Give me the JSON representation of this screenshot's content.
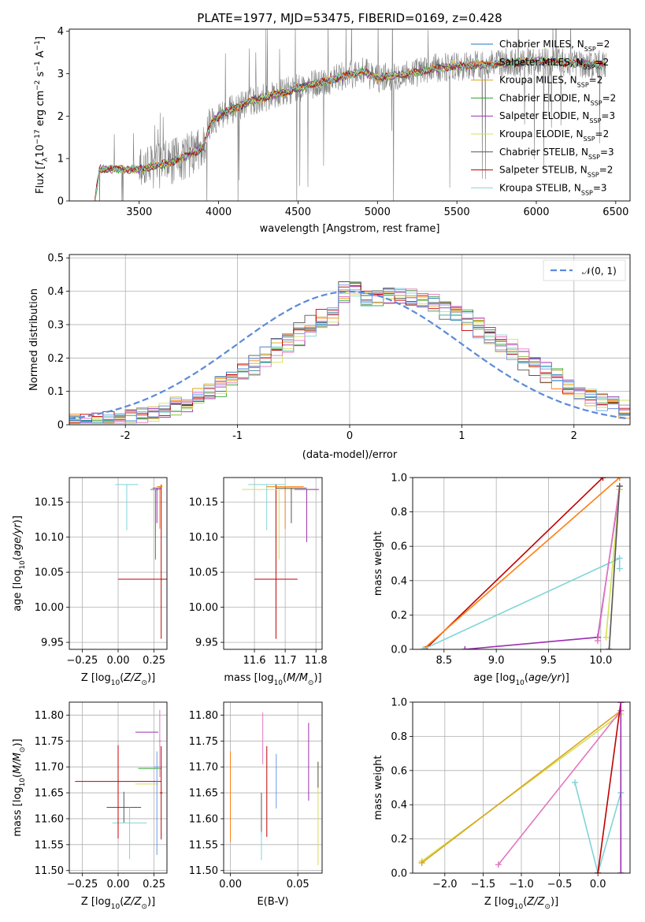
{
  "chart_data": [
    {
      "type": "line",
      "panel": "spectrum",
      "title": "PLATE=1977, MJD=53475, FIBERID=0169, z=0.428",
      "xlabel": "wavelength [Angstrom, rest frame]",
      "ylabel": "Flux [f_λ 10^-17 erg cm^-2 s^-1 Å^-1]",
      "xlim": [
        3060,
        6590
      ],
      "ylim": [
        0,
        4.05
      ],
      "xticks": [
        3500,
        4000,
        4500,
        5000,
        5500,
        6000,
        6500
      ],
      "yticks": [
        0,
        1,
        2,
        3,
        4
      ],
      "grid": false,
      "legend_position": "right",
      "data_range": [
        3220,
        6440
      ],
      "continuum_knots": {
        "x": [
          3220,
          3250,
          3500,
          3700,
          3850,
          3900,
          3960,
          4020,
          4200,
          4400,
          4600,
          4800,
          4900,
          5000,
          5200,
          5400,
          5600,
          5800,
          6000,
          6200,
          6440
        ],
        "y": [
          0.0,
          0.75,
          0.75,
          0.9,
          1.15,
          1.25,
          1.9,
          2.05,
          2.35,
          2.55,
          2.75,
          2.95,
          3.05,
          2.9,
          3.0,
          3.15,
          3.2,
          3.25,
          3.3,
          3.25,
          3.2
        ]
      },
      "legend": [
        {
          "label": "Chabrier MILES, N",
          "sub": "SSP",
          "tail": "=2",
          "color": "#1f77b4"
        },
        {
          "label": "Salpeter MILES, N",
          "sub": "SSP",
          "tail": "=2",
          "color": "#ff7f0e"
        },
        {
          "label": "Kroupa MILES, N",
          "sub": "SSP",
          "tail": "=2",
          "color": "#d9a520"
        },
        {
          "label": "Chabrier ELODIE, N",
          "sub": "SSP",
          "tail": "=2",
          "color": "#2ca02c"
        },
        {
          "label": "Salpeter ELODIE, N",
          "sub": "SSP",
          "tail": "=3",
          "color": "#9b30b0"
        },
        {
          "label": "Kroupa ELODIE, N",
          "sub": "SSP",
          "tail": "=2",
          "color": "#d4e157"
        },
        {
          "label": "Chabrier STELIB, N",
          "sub": "SSP",
          "tail": "=3",
          "color": "#555555"
        },
        {
          "label": "Salpeter STELIB, N",
          "sub": "SSP",
          "tail": "=2",
          "color": "#c00000"
        },
        {
          "label": "Kroupa STELIB, N",
          "sub": "SSP",
          "tail": "=3",
          "color": "#80d4d8"
        }
      ],
      "data_color": "#808080"
    },
    {
      "type": "line",
      "panel": "residual-histogram",
      "xlabel": "(data-model)/error",
      "ylabel": "Normed distribution",
      "xlim": [
        -2.5,
        2.5
      ],
      "ylim": [
        0,
        0.51
      ],
      "xticks": [
        -2,
        -1,
        0,
        1,
        2
      ],
      "yticks": [
        0.0,
        0.1,
        0.2,
        0.3,
        0.4,
        0.5
      ],
      "grid": true,
      "legend": [
        {
          "label": "𝒩(0, 1)",
          "color": "#5b8bd8"
        }
      ],
      "legend_position": "top-right",
      "gaussian": {
        "mu": 0,
        "sigma": 1,
        "color": "#5b8bd8"
      },
      "histograms": {
        "bin_edges_start": -2.5,
        "bin_width": 0.1,
        "bins": 50,
        "colors": [
          "#1f77b4",
          "#ff7f0e",
          "#d9a520",
          "#2ca02c",
          "#9b30b0",
          "#d4e157",
          "#555555",
          "#c00000",
          "#80d4d8",
          "#e377c2",
          "#6a9be8"
        ]
      }
    },
    {
      "type": "scatter",
      "panel": "age-vs-Z",
      "xlabel": "Z [log10(Z/Z☉)]",
      "ylabel": "age  [log10(age/yr)]",
      "xlim": [
        -0.34,
        0.34
      ],
      "ylim": [
        9.94,
        10.185
      ],
      "xticks": [
        -0.25,
        0.0,
        0.25
      ],
      "xticklabels": [
        "−0.25",
        "0.00",
        "0.25"
      ],
      "yticks": [
        9.95,
        10.0,
        10.05,
        10.1,
        10.15
      ],
      "yticklabels": [
        "9.95",
        "10.00",
        "10.05",
        "10.10",
        "10.15"
      ],
      "grid": true,
      "points": [
        {
          "x": 0.06,
          "y": 10.175,
          "xerr": 0.08,
          "yerr": [
            0.065,
            0.0
          ],
          "color": "#80d4d8"
        },
        {
          "x": 0.3,
          "y": 10.04,
          "xerr": 0.3,
          "yerr": [
            0.085,
            0.135
          ],
          "color": "#c00000"
        },
        {
          "x": 0.26,
          "y": 10.168,
          "xerr": 0.035,
          "yerr": [
            0.1,
            0.0
          ],
          "color": "#2ca02c"
        },
        {
          "x": 0.29,
          "y": 10.172,
          "xerr": 0.02,
          "yerr": [
            0.06,
            0.0
          ],
          "color": "#ff7f0e"
        },
        {
          "x": 0.27,
          "y": 10.17,
          "xerr": 0.03,
          "yerr": [
            0.05,
            0.0
          ],
          "color": "#9b30b0"
        }
      ]
    },
    {
      "type": "scatter",
      "panel": "age-vs-mass",
      "xlabel": "mass [log10(M/M☉)]",
      "ylabel": "",
      "xlim": [
        11.5,
        11.82
      ],
      "ylim": [
        9.94,
        10.185
      ],
      "xticks": [
        11.6,
        11.7,
        11.8
      ],
      "xticklabels": [
        "11.6",
        "11.7",
        "11.8"
      ],
      "yticks": [
        9.95,
        10.0,
        10.05,
        10.1,
        10.15
      ],
      "yticklabels": [
        "9.95",
        "10.00",
        "10.05",
        "10.10",
        "10.15"
      ],
      "grid": true,
      "points": [
        {
          "x": 11.64,
          "y": 10.175,
          "xerr": 0.06,
          "yerr": [
            0.065,
            0.0
          ],
          "color": "#80d4d8"
        },
        {
          "x": 11.67,
          "y": 10.04,
          "xerr": 0.07,
          "yerr": [
            0.085,
            0.135
          ],
          "color": "#c00000"
        },
        {
          "x": 11.68,
          "y": 10.168,
          "xerr": 0.12,
          "yerr": [
            0.1,
            0.0
          ],
          "color": "#d4e157"
        },
        {
          "x": 11.7,
          "y": 10.172,
          "xerr": 0.06,
          "yerr": [
            0.06,
            0.0
          ],
          "color": "#ff7f0e"
        },
        {
          "x": 11.77,
          "y": 10.168,
          "xerr": 0.04,
          "yerr": [
            0.075,
            0.0
          ],
          "color": "#9b30b0"
        },
        {
          "x": 11.72,
          "y": 10.17,
          "xerr": 0.05,
          "yerr": [
            0.05,
            0.0
          ],
          "color": "#555555"
        }
      ]
    },
    {
      "type": "line",
      "panel": "mass-weight-vs-age",
      "xlabel": "age  [log10(age/yr)]",
      "ylabel": "mass weight",
      "xlim": [
        8.2,
        10.28
      ],
      "ylim": [
        0,
        1.0
      ],
      "xticks": [
        8.5,
        9.0,
        9.5,
        10.0
      ],
      "xticklabels": [
        "8.5",
        "9.0",
        "9.5",
        "10.0"
      ],
      "yticks": [
        0.0,
        0.2,
        0.4,
        0.6,
        0.8,
        1.0
      ],
      "yticklabels": [
        "0.0",
        "0.2",
        "0.4",
        "0.6",
        "0.8",
        "1.0"
      ],
      "grid": true,
      "series": [
        {
          "color": "#c00000",
          "x": [
            8.32,
            10.02
          ],
          "y": [
            0.0,
            1.0
          ]
        },
        {
          "color": "#ff7f0e",
          "x": [
            8.3,
            10.18
          ],
          "y": [
            0.0,
            1.0
          ]
        },
        {
          "color": "#80d4d8",
          "x": [
            8.3,
            10.18,
            10.18
          ],
          "y": [
            0.0,
            0.53,
            0.47
          ]
        },
        {
          "color": "#9b30b0",
          "x": [
            8.7,
            9.97,
            10.18
          ],
          "y": [
            0.0,
            0.07,
            0.93
          ]
        },
        {
          "color": "#e377c2",
          "x": [
            9.97,
            10.18
          ],
          "y": [
            0.05,
            0.95
          ]
        },
        {
          "color": "#d4e157",
          "x": [
            10.05,
            10.18
          ],
          "y": [
            0.07,
            0.93
          ]
        },
        {
          "color": "#555555",
          "x": [
            10.08,
            10.18
          ],
          "y": [
            0.0,
            0.95
          ]
        }
      ]
    },
    {
      "type": "scatter",
      "panel": "mass-vs-Z",
      "xlabel": "Z [log10(Z/Z☉)]",
      "ylabel": "mass [log10(M/M☉)]",
      "xlim": [
        -0.34,
        0.34
      ],
      "ylim": [
        11.495,
        11.825
      ],
      "xticks": [
        -0.25,
        0.0,
        0.25
      ],
      "xticklabels": [
        "−0.25",
        "0.00",
        "0.25"
      ],
      "yticks": [
        11.5,
        11.55,
        11.6,
        11.65,
        11.7,
        11.75,
        11.8
      ],
      "yticklabels": [
        "11.50",
        "11.55",
        "11.60",
        "11.65",
        "11.70",
        "11.75",
        "11.80"
      ],
      "grid": true,
      "points": [
        {
          "x": 0.04,
          "y": 11.622,
          "xerr": 0.12,
          "yerr": [
            0.03,
            0.03
          ],
          "color": "#555555"
        },
        {
          "x": 0.08,
          "y": 11.592,
          "xerr": 0.12,
          "yerr": [
            0.07,
            0.03
          ],
          "color": "#80d4d8"
        },
        {
          "x": 0.0,
          "y": 11.672,
          "xerr": 0.3,
          "yerr": [
            0.11,
            0.07
          ],
          "color": "#c00000"
        },
        {
          "x": 0.2,
          "y": 11.767,
          "xerr": 0.08,
          "yerr": [
            0.0,
            0.0
          ],
          "color": "#9b30b0"
        },
        {
          "x": 0.2,
          "y": 11.667,
          "xerr": 0.08,
          "yerr": [
            0.0,
            0.0
          ],
          "color": "#d4e157"
        },
        {
          "x": 0.22,
          "y": 11.697,
          "xerr": 0.08,
          "yerr": [
            0.0,
            0.0
          ],
          "color": "#2ca02c"
        },
        {
          "x": 0.27,
          "y": 11.7,
          "xerr": 0.02,
          "yerr": [
            0.17,
            0.03
          ],
          "color": "#6a9be8"
        },
        {
          "x": 0.29,
          "y": 11.75,
          "xerr": 0.01,
          "yerr": [
            0.07,
            0.06
          ],
          "color": "#e377c2"
        },
        {
          "x": 0.3,
          "y": 11.65,
          "xerr": 0.01,
          "yerr": [
            0.09,
            0.09
          ],
          "color": "#c00000"
        }
      ]
    },
    {
      "type": "scatter",
      "panel": "mass-vs-EBV",
      "xlabel": "E(B-V)",
      "ylabel": "",
      "xlim": [
        -0.005,
        0.068
      ],
      "ylim": [
        11.495,
        11.825
      ],
      "xticks": [
        0.0,
        0.05
      ],
      "xticklabels": [
        "0.00",
        "0.05"
      ],
      "yticks": [
        11.5,
        11.55,
        11.6,
        11.65,
        11.7,
        11.75,
        11.8
      ],
      "yticklabels": [
        "11.50",
        "11.55",
        "11.60",
        "11.65",
        "11.70",
        "11.75",
        "11.80"
      ],
      "grid": true,
      "points": [
        {
          "x": 0.0,
          "y": 11.645,
          "yerr": [
            0.09,
            0.085
          ],
          "color": "#ff7f0e"
        },
        {
          "x": 0.023,
          "y": 11.61,
          "yerr": [
            0.04,
            0.04
          ],
          "color": "#555555"
        },
        {
          "x": 0.023,
          "y": 11.575,
          "yerr": [
            0.055,
            0.0
          ],
          "color": "#80d4d8"
        },
        {
          "x": 0.024,
          "y": 11.76,
          "yerr": [
            0.055,
            0.045
          ],
          "color": "#e377c2"
        },
        {
          "x": 0.027,
          "y": 11.655,
          "yerr": [
            0.09,
            0.085
          ],
          "color": "#c00000"
        },
        {
          "x": 0.034,
          "y": 11.67,
          "yerr": [
            0.05,
            0.055
          ],
          "color": "#6a9be8"
        },
        {
          "x": 0.058,
          "y": 11.71,
          "yerr": [
            0.075,
            0.075
          ],
          "color": "#9b30b0"
        },
        {
          "x": 0.065,
          "y": 11.61,
          "yerr": [
            0.1,
            0.1
          ],
          "color": "#d4e157"
        },
        {
          "x": 0.065,
          "y": 11.69,
          "yerr": [
            0.03,
            0.02
          ],
          "color": "#555555"
        }
      ]
    },
    {
      "type": "line",
      "panel": "mass-weight-vs-Z",
      "xlabel": "Z [log10(Z/Z☉)]",
      "ylabel": "mass weight",
      "xlim": [
        -2.42,
        0.42
      ],
      "ylim": [
        0,
        1.0
      ],
      "xticks": [
        -2.0,
        -1.5,
        -1.0,
        -0.5,
        0.0
      ],
      "xticklabels": [
        "−2.0",
        "−1.5",
        "−1.0",
        "−0.5",
        "0.0"
      ],
      "yticks": [
        0.0,
        0.2,
        0.4,
        0.6,
        0.8,
        1.0
      ],
      "yticklabels": [
        "0.0",
        "0.2",
        "0.4",
        "0.6",
        "0.8",
        "1.0"
      ],
      "grid": true,
      "series": [
        {
          "color": "#d4e157",
          "x": [
            -2.3,
            0.3
          ],
          "y": [
            0.07,
            0.93
          ]
        },
        {
          "color": "#d9a520",
          "x": [
            -2.3,
            0.3
          ],
          "y": [
            0.06,
            0.95
          ]
        },
        {
          "color": "#e377c2",
          "x": [
            -1.3,
            0.3
          ],
          "y": [
            0.05,
            0.95
          ]
        },
        {
          "color": "#80d4d8",
          "x": [
            -0.3,
            0.0,
            0.3
          ],
          "y": [
            0.53,
            0.0,
            0.47
          ]
        },
        {
          "color": "#c00000",
          "x": [
            0.0,
            0.3
          ],
          "y": [
            0.0,
            1.0
          ]
        },
        {
          "color": "#9b30b0",
          "x": [
            0.3,
            0.3
          ],
          "y": [
            0.0,
            1.0
          ]
        }
      ]
    }
  ]
}
